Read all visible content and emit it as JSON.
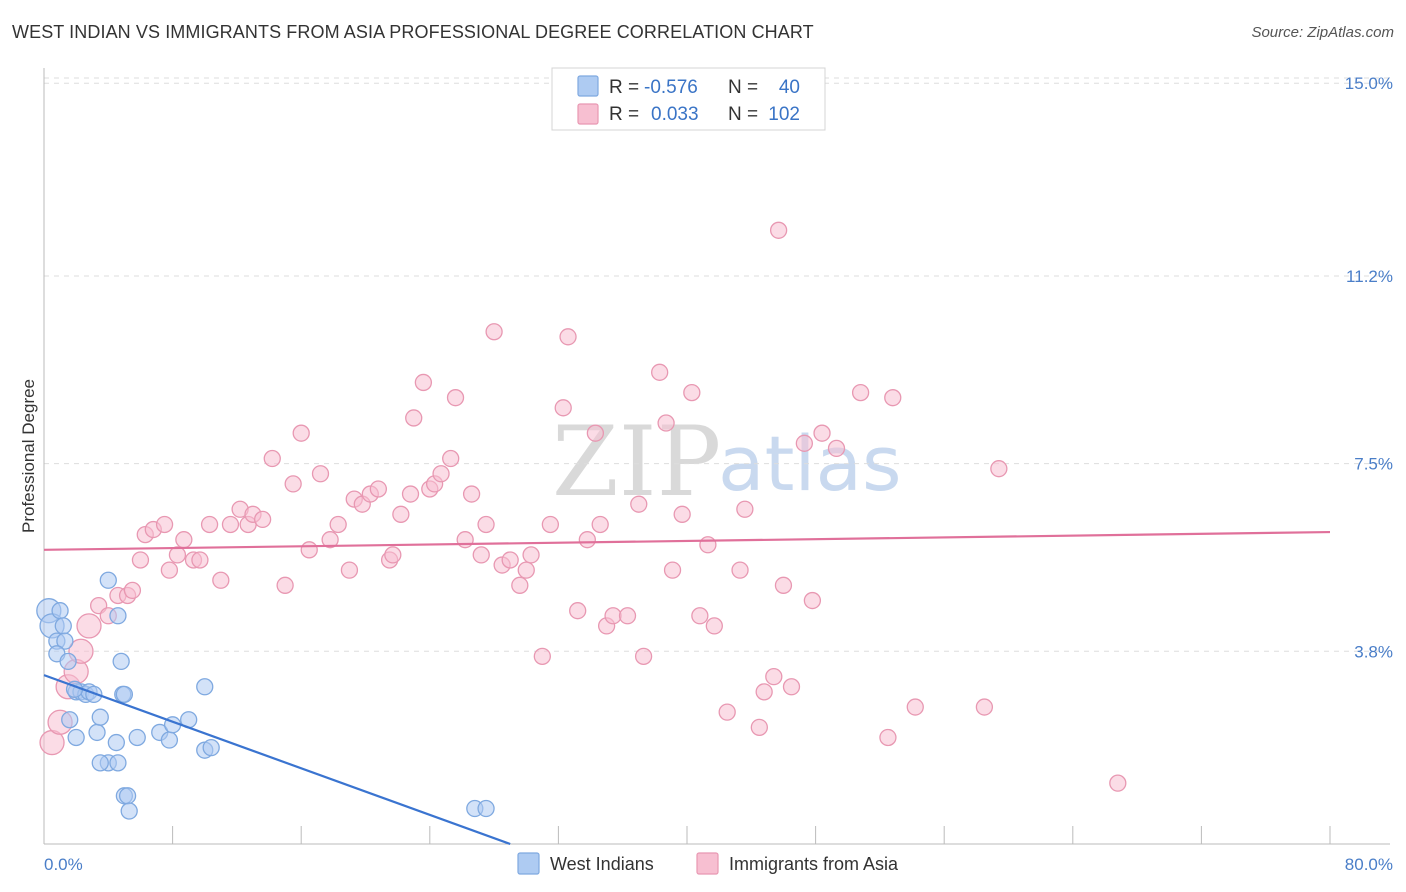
{
  "header": {
    "title": "WEST INDIAN VS IMMIGRANTS FROM ASIA PROFESSIONAL DEGREE CORRELATION CHART",
    "source": "Source: ZipAtlas.com"
  },
  "watermark": {
    "zip": "ZIP",
    "atlas": "atlas"
  },
  "chart_data": {
    "type": "scatter",
    "title": "WEST INDIAN VS IMMIGRANTS FROM ASIA PROFESSIONAL DEGREE CORRELATION CHART",
    "xlabel": "",
    "ylabel": "Professional Degree",
    "xlim": [
      0,
      80
    ],
    "ylim": [
      0,
      15.3
    ],
    "x_tick_labels": {
      "min": "0.0%",
      "max": "80.0%"
    },
    "y_ticks": [
      {
        "value": 3.8,
        "label": "3.8%"
      },
      {
        "value": 7.5,
        "label": "7.5%"
      },
      {
        "value": 11.2,
        "label": "11.2%"
      },
      {
        "value": 15.0,
        "label": "15.0%"
      }
    ],
    "grid": true,
    "legend": [
      {
        "r_label": "R =",
        "r_value": "-0.576",
        "n_label": "N =",
        "n_value": "40",
        "color": "#aecbf2"
      },
      {
        "r_label": "R =",
        "r_value": "0.033",
        "n_label": "N =",
        "n_value": "102",
        "color": "#f7bfd1"
      }
    ],
    "series": [
      {
        "name": "West Indians",
        "color": "#7fa9e0",
        "fill": "#aecbf2",
        "trend": {
          "x": [
            0,
            29
          ],
          "y": [
            3.33,
            0
          ]
        },
        "trend_color": "#3a74d0",
        "points": [
          [
            0.3,
            4.6,
            1
          ],
          [
            0.5,
            4.3,
            1
          ],
          [
            0.8,
            4.0,
            0
          ],
          [
            1.0,
            4.6,
            0
          ],
          [
            1.2,
            4.3,
            0
          ],
          [
            1.3,
            4.0,
            0
          ],
          [
            0.8,
            3.75,
            0
          ],
          [
            1.5,
            3.6,
            0
          ],
          [
            2.0,
            3.0,
            0
          ],
          [
            2.3,
            3.0,
            0
          ],
          [
            2.6,
            2.95,
            0
          ],
          [
            1.6,
            2.45,
            0
          ],
          [
            2.0,
            2.1,
            0
          ],
          [
            3.3,
            2.2,
            0
          ],
          [
            3.5,
            2.5,
            0
          ],
          [
            4.6,
            4.5,
            0
          ],
          [
            4.0,
            5.2,
            0
          ],
          [
            4.0,
            1.6,
            0
          ],
          [
            3.5,
            1.6,
            0
          ],
          [
            4.6,
            1.6,
            0
          ],
          [
            4.8,
            3.6,
            0
          ],
          [
            4.9,
            2.95,
            0
          ],
          [
            4.5,
            2.0,
            0
          ],
          [
            5.0,
            2.95,
            0
          ],
          [
            5.8,
            2.1,
            0
          ],
          [
            5.0,
            0.95,
            0
          ],
          [
            5.2,
            0.95,
            0
          ],
          [
            5.3,
            0.65,
            0
          ],
          [
            7.2,
            2.2,
            0
          ],
          [
            7.8,
            2.05,
            0
          ],
          [
            8.0,
            2.35,
            0
          ],
          [
            9.0,
            2.45,
            0
          ],
          [
            10.0,
            3.1,
            0
          ],
          [
            10.0,
            1.85,
            0
          ],
          [
            10.4,
            1.9,
            0
          ],
          [
            2.8,
            3.0,
            0
          ],
          [
            3.1,
            2.95,
            0
          ],
          [
            1.9,
            3.05,
            0
          ],
          [
            26.8,
            0.7,
            0
          ],
          [
            27.5,
            0.7,
            0
          ]
        ]
      },
      {
        "name": "Immigrants from Asia",
        "color": "#e898b2",
        "fill": "#f7bfd1",
        "trend": {
          "x": [
            0,
            80
          ],
          "y": [
            5.8,
            6.15
          ]
        },
        "trend_color": "#e0709a",
        "points": [
          [
            0.5,
            2.0,
            1
          ],
          [
            1.0,
            2.4,
            1
          ],
          [
            1.5,
            3.1,
            1
          ],
          [
            2.0,
            3.4,
            1
          ],
          [
            2.3,
            3.8,
            1
          ],
          [
            2.8,
            4.3,
            1
          ],
          [
            3.4,
            4.7,
            0
          ],
          [
            4.0,
            4.5,
            0
          ],
          [
            4.6,
            4.9,
            0
          ],
          [
            5.2,
            4.9,
            0
          ],
          [
            5.5,
            5.0,
            0
          ],
          [
            6.0,
            5.6,
            0
          ],
          [
            6.3,
            6.1,
            0
          ],
          [
            6.8,
            6.2,
            0
          ],
          [
            7.5,
            6.3,
            0
          ],
          [
            7.8,
            5.4,
            0
          ],
          [
            8.3,
            5.7,
            0
          ],
          [
            8.7,
            6.0,
            0
          ],
          [
            9.3,
            5.6,
            0
          ],
          [
            9.7,
            5.6,
            0
          ],
          [
            10.3,
            6.3,
            0
          ],
          [
            11.0,
            5.2,
            0
          ],
          [
            11.6,
            6.3,
            0
          ],
          [
            12.2,
            6.6,
            0
          ],
          [
            12.7,
            6.3,
            0
          ],
          [
            13.0,
            6.5,
            0
          ],
          [
            13.6,
            6.4,
            0
          ],
          [
            14.2,
            7.6,
            0
          ],
          [
            15.0,
            5.1,
            0
          ],
          [
            15.5,
            7.1,
            0
          ],
          [
            16.0,
            8.1,
            0
          ],
          [
            16.5,
            5.8,
            0
          ],
          [
            17.2,
            7.3,
            0
          ],
          [
            17.8,
            6.0,
            0
          ],
          [
            18.3,
            6.3,
            0
          ],
          [
            19.0,
            5.4,
            0
          ],
          [
            19.3,
            6.8,
            0
          ],
          [
            19.8,
            6.7,
            0
          ],
          [
            20.3,
            6.9,
            0
          ],
          [
            20.8,
            7.0,
            0
          ],
          [
            21.5,
            5.6,
            0
          ],
          [
            21.7,
            5.7,
            0
          ],
          [
            22.2,
            6.5,
            0
          ],
          [
            22.8,
            6.9,
            0
          ],
          [
            23.0,
            8.4,
            0
          ],
          [
            23.6,
            9.1,
            0
          ],
          [
            24.0,
            7.0,
            0
          ],
          [
            24.3,
            7.1,
            0
          ],
          [
            24.7,
            7.3,
            0
          ],
          [
            25.3,
            7.6,
            0
          ],
          [
            25.6,
            8.8,
            0
          ],
          [
            26.2,
            6.0,
            0
          ],
          [
            26.6,
            6.9,
            0
          ],
          [
            27.2,
            5.7,
            0
          ],
          [
            27.5,
            6.3,
            0
          ],
          [
            28.0,
            10.1,
            0
          ],
          [
            28.5,
            5.5,
            0
          ],
          [
            29.0,
            5.6,
            0
          ],
          [
            29.6,
            5.1,
            0
          ],
          [
            30.0,
            5.4,
            0
          ],
          [
            30.3,
            5.7,
            0
          ],
          [
            31.0,
            3.7,
            0
          ],
          [
            31.5,
            6.3,
            0
          ],
          [
            32.3,
            8.6,
            0
          ],
          [
            32.6,
            10.0,
            0
          ],
          [
            33.2,
            4.6,
            0
          ],
          [
            33.8,
            6.0,
            0
          ],
          [
            34.3,
            8.1,
            0
          ],
          [
            34.6,
            6.3,
            0
          ],
          [
            35.0,
            4.3,
            0
          ],
          [
            35.4,
            4.5,
            0
          ],
          [
            36.3,
            4.5,
            0
          ],
          [
            37.0,
            6.7,
            0
          ],
          [
            37.3,
            3.7,
            0
          ],
          [
            38.3,
            9.3,
            0
          ],
          [
            38.7,
            8.3,
            0
          ],
          [
            39.1,
            5.4,
            0
          ],
          [
            39.7,
            6.5,
            0
          ],
          [
            40.3,
            8.9,
            0
          ],
          [
            40.8,
            4.5,
            0
          ],
          [
            41.3,
            5.9,
            0
          ],
          [
            41.7,
            4.3,
            0
          ],
          [
            42.5,
            2.6,
            0
          ],
          [
            43.3,
            5.4,
            0
          ],
          [
            43.6,
            6.6,
            0
          ],
          [
            44.5,
            2.3,
            0
          ],
          [
            44.8,
            3.0,
            0
          ],
          [
            45.4,
            3.3,
            0
          ],
          [
            45.7,
            12.1,
            0
          ],
          [
            46.0,
            5.1,
            0
          ],
          [
            46.5,
            3.1,
            0
          ],
          [
            47.3,
            7.9,
            0
          ],
          [
            47.8,
            4.8,
            0
          ],
          [
            48.4,
            8.1,
            0
          ],
          [
            49.3,
            7.8,
            0
          ],
          [
            50.8,
            8.9,
            0
          ],
          [
            52.5,
            2.1,
            0
          ],
          [
            52.8,
            8.8,
            0
          ],
          [
            54.2,
            2.7,
            0
          ],
          [
            58.5,
            2.7,
            0
          ],
          [
            59.4,
            7.4,
            0
          ],
          [
            66.8,
            1.2,
            0
          ]
        ]
      }
    ]
  },
  "bottom_legend": [
    {
      "label": "West Indians"
    },
    {
      "label": "Immigrants from Asia"
    }
  ]
}
